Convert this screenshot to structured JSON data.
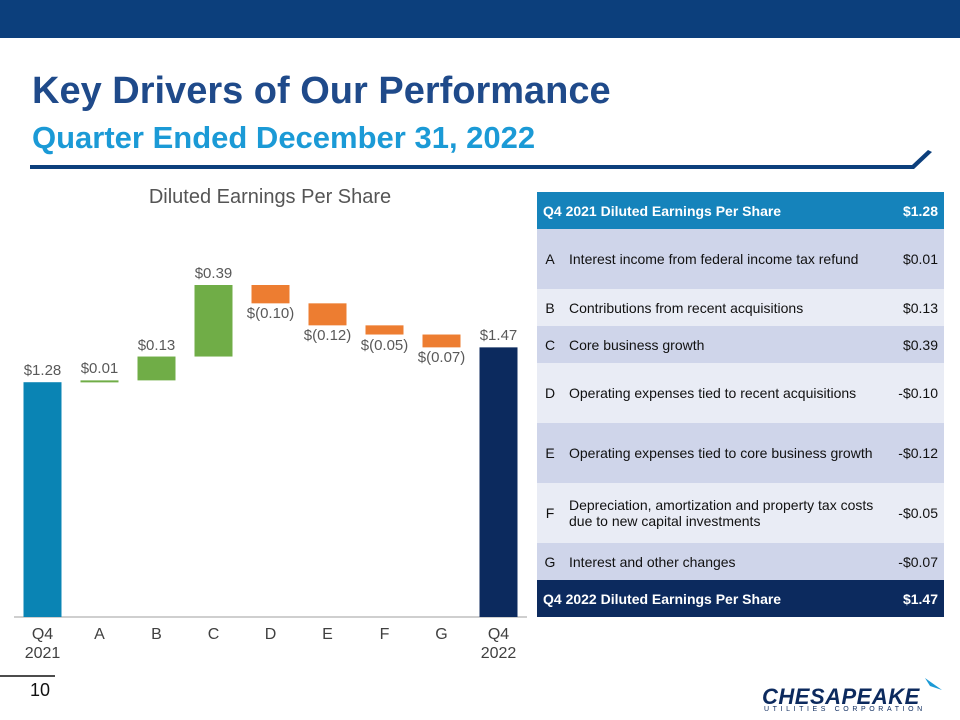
{
  "header": {
    "title": "Key Drivers of Our Performance",
    "subtitle": "Quarter Ended December 31, 2022"
  },
  "chart_data": {
    "type": "waterfall",
    "title": "Diluted Earnings Per Share",
    "categories": [
      "Q4 2021",
      "A",
      "B",
      "C",
      "D",
      "E",
      "F",
      "G",
      "Q4 2022"
    ],
    "values": [
      1.28,
      0.01,
      0.13,
      0.39,
      -0.1,
      -0.12,
      -0.05,
      -0.07,
      1.47
    ],
    "value_labels": [
      "$1.28",
      "$0.01",
      "$0.13",
      "$0.39",
      "$(0.10)",
      "$(0.12)",
      "$(0.05)",
      "$(0.07)",
      "$1.47"
    ],
    "colors": [
      "#0a84b4",
      "#70ad47",
      "#70ad47",
      "#70ad47",
      "#ed7d31",
      "#ed7d31",
      "#ed7d31",
      "#ed7d31",
      "#0c2a5e"
    ]
  },
  "table": {
    "header": [
      "Q4 2021 Diluted Earnings Per Share",
      "$1.28"
    ],
    "rows": [
      [
        "A",
        "Interest income from federal income tax refund",
        "$0.01"
      ],
      [
        "B",
        "Contributions from recent acquisitions",
        "$0.13"
      ],
      [
        "C",
        "Core business growth",
        "$0.39"
      ],
      [
        "D",
        "Operating expenses tied to recent acquisitions",
        "-$0.10"
      ],
      [
        "E",
        "Operating expenses tied to core business growth",
        "-$0.12"
      ],
      [
        "F",
        "Depreciation, amortization and property tax costs due to new capital investments",
        "-$0.05"
      ],
      [
        "G",
        "Interest and other changes",
        "-$0.07"
      ]
    ],
    "footer": [
      "Q4 2022 Diluted Earnings Per Share",
      "$1.47"
    ]
  },
  "page_number": "10",
  "logo": {
    "name": "CHESAPEAKE",
    "tagline": "UTILITIES CORPORATION"
  }
}
